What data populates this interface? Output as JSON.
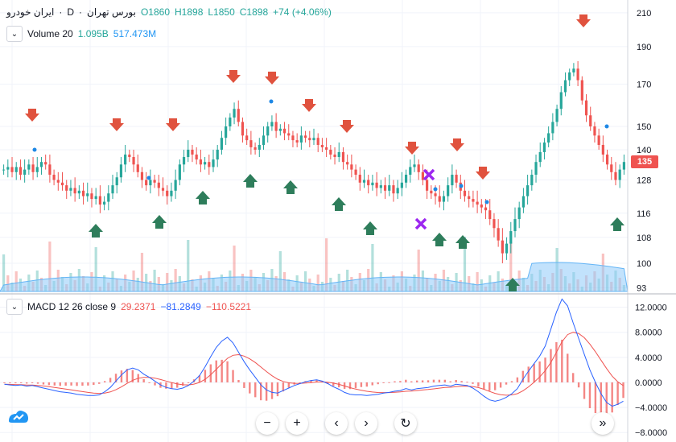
{
  "symbol": {
    "name": "ایران خودرو",
    "interval": "D",
    "exchange": "بورس تهران",
    "open": "O1860",
    "high": "H1898",
    "low": "L1850",
    "close": "C1898",
    "change": "+74 (+4.06%)"
  },
  "volume": {
    "label": "Volume 20",
    "v1": "1.095B",
    "v2": "517.473M"
  },
  "macd": {
    "label": "MACD 12 26 close 9",
    "v1": "29.2371",
    "v2": "−81.2849",
    "v3": "−110.5221"
  },
  "last_price": "135",
  "colors": {
    "up": "#26a69a",
    "down": "#ef5350",
    "macd": "#2962ff",
    "signal": "#ef5350",
    "vol_ma": "#90caf9"
  },
  "icons": [
    "chevron-down-icon",
    "zoom-out-icon",
    "zoom-in-icon",
    "scroll-left-icon",
    "scroll-right-icon",
    "reset-icon",
    "scroll-to-end-icon",
    "tradingview-logo-icon"
  ],
  "toolbar": {
    "zoom_out": "−",
    "zoom_in": "+",
    "left": "‹",
    "right": "›",
    "reset": "↻",
    "end": "»"
  },
  "chart_data": [
    {
      "type": "candlestick",
      "price_axis": [
        "210",
        "190",
        "170",
        "150",
        "140",
        "128",
        "116",
        "108",
        "100",
        "93"
      ],
      "price_ticks": [
        210,
        190,
        170,
        150,
        140,
        128,
        116,
        108,
        100,
        93
      ],
      "ylim": [
        92,
        214
      ],
      "closes": [
        132,
        133,
        131,
        133,
        130,
        132,
        134,
        131,
        133,
        135,
        134,
        130,
        128,
        127,
        126,
        124,
        125,
        123,
        124,
        122,
        123,
        121,
        122,
        119,
        120,
        123,
        126,
        129,
        134,
        138,
        137,
        134,
        131,
        128,
        126,
        128,
        127,
        125,
        124,
        122,
        124,
        128,
        134,
        137,
        140,
        138,
        136,
        134,
        135,
        133,
        136,
        140,
        145,
        150,
        154,
        158,
        152,
        146,
        144,
        141,
        140,
        142,
        146,
        150,
        152,
        148,
        149,
        147,
        146,
        144,
        143,
        146,
        145,
        144,
        145,
        142,
        141,
        140,
        138,
        137,
        139,
        135,
        134,
        132,
        130,
        127,
        128,
        126,
        127,
        125,
        126,
        124,
        126,
        123,
        125,
        127,
        130,
        133,
        134,
        131,
        128,
        124,
        123,
        122,
        120,
        122,
        126,
        130,
        127,
        124,
        122,
        121,
        120,
        119,
        118,
        117,
        114,
        111,
        107,
        103,
        106,
        110,
        114,
        118,
        122,
        126,
        130,
        135,
        139,
        143,
        147,
        152,
        158,
        166,
        172,
        176,
        178,
        172,
        162,
        155,
        150,
        146,
        142,
        138,
        134,
        131,
        128,
        132,
        135
      ]
    },
    {
      "type": "macd",
      "axis": [
        "12.0000",
        "8.0000",
        "4.0000",
        "0.0000",
        "−4.0000",
        "−8.0000"
      ],
      "ticks": [
        12,
        8,
        4,
        0,
        -4,
        -8
      ],
      "ylim": [
        -9,
        14
      ],
      "macd": [
        -0.3,
        -0.4,
        -0.5,
        -0.4,
        -0.6,
        -0.5,
        -0.7,
        -0.9,
        -1.1,
        -1.3,
        -1.5,
        -1.6,
        -1.7,
        -1.9,
        -2.0,
        -2.1,
        -2.1,
        -2.0,
        -1.5,
        -0.8,
        0.2,
        1.2,
        2.0,
        2.3,
        2.0,
        1.3,
        0.8,
        0.2,
        -0.4,
        -0.8,
        -1.0,
        -1.1,
        -0.9,
        -0.5,
        0.2,
        1.1,
        2.5,
        4.1,
        5.6,
        6.6,
        7.2,
        6.3,
        4.8,
        3.3,
        2.0,
        0.8,
        -0.4,
        -1.2,
        -1.6,
        -1.7,
        -1.3,
        -0.9,
        -0.5,
        -0.2,
        0.1,
        0.3,
        0.4,
        0.2,
        -0.2,
        -0.7,
        -1.1,
        -1.6,
        -1.9,
        -2.0,
        -2.0,
        -2.1,
        -2.0,
        -1.9,
        -1.7,
        -1.6,
        -1.4,
        -1.3,
        -1.0,
        -1.2,
        -1.0,
        -0.9,
        -0.8,
        -0.6,
        -0.5,
        -0.4,
        -0.6,
        -0.3,
        -0.4,
        -0.5,
        -0.9,
        -1.5,
        -2.2,
        -2.8,
        -3.0,
        -2.8,
        -2.4,
        -1.8,
        -1.0,
        0.5,
        1.8,
        3.0,
        4.2,
        5.8,
        8.5,
        11.2,
        13.3,
        12.2,
        9.5,
        7.0,
        4.5,
        2.0,
        0.0,
        -1.8,
        -3.2,
        -3.8,
        -3.5,
        -3.0
      ]
    }
  ]
}
